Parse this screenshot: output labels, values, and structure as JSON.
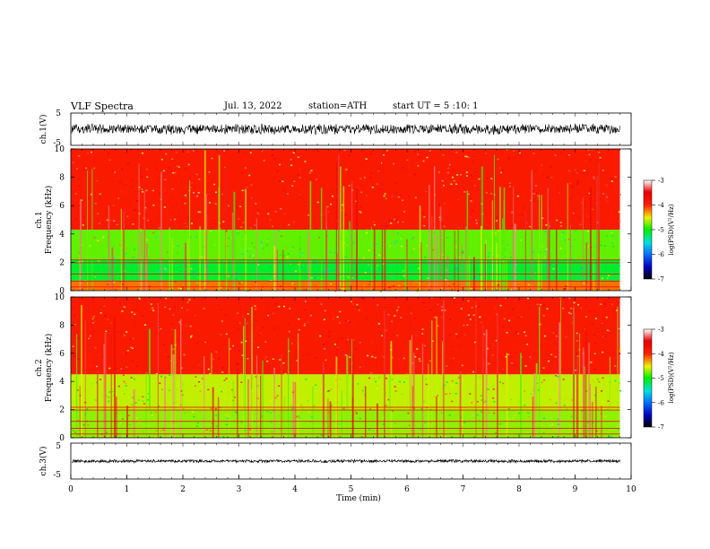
{
  "header": {
    "title": "VLF Spectra",
    "date": "Jul. 13, 2022",
    "station": "station=ATH",
    "start": "start UT =  5 :10: 1"
  },
  "chart_data": [
    {
      "type": "line",
      "name": "ch1-waveform",
      "ylabel": "ch.1(V)",
      "ylim": [
        -5,
        5
      ],
      "yticks": [
        "5",
        "-5"
      ],
      "xlim": [
        0,
        10
      ],
      "x_end": 9.8,
      "approx_amplitude": 1.5
    },
    {
      "type": "heatmap",
      "name": "ch1-spectrogram",
      "ylabel": "ch.1\nFrequency (kHz)",
      "ylim": [
        0,
        10
      ],
      "yticks": [
        "0",
        "2",
        "4",
        "6",
        "8",
        "10"
      ],
      "xlim": [
        0,
        10
      ],
      "x_end": 9.8,
      "bands": [
        {
          "from": 4.3,
          "to": 10,
          "level": -3.9
        },
        {
          "from": 2.2,
          "to": 4.3,
          "level": -4.8
        },
        {
          "from": 0.7,
          "to": 2.2,
          "level": -5.1
        },
        {
          "from": 0,
          "to": 0.7,
          "level": -4.2
        }
      ],
      "colorbar": {
        "label": "log(PSD)(V²/Hz)",
        "range": [
          -7,
          -3
        ],
        "ticks": [
          "-3",
          "-4",
          "-5",
          "-6",
          "-7"
        ]
      }
    },
    {
      "type": "heatmap",
      "name": "ch2-spectrogram",
      "ylabel": "ch.2\nFrequency (kHz)",
      "ylim": [
        0,
        10
      ],
      "yticks": [
        "0",
        "2",
        "4",
        "6",
        "8",
        "10"
      ],
      "xlim": [
        0,
        10
      ],
      "x_end": 9.8,
      "bands": [
        {
          "from": 4.5,
          "to": 10,
          "level": -3.9
        },
        {
          "from": 2.0,
          "to": 4.5,
          "level": -4.6
        },
        {
          "from": 0,
          "to": 2.0,
          "level": -4.7
        }
      ],
      "colorbar": {
        "label": "log(PSD)(V²/Hz)",
        "range": [
          -7,
          -3
        ],
        "ticks": [
          "-3",
          "-4",
          "-5",
          "-6",
          "-7"
        ]
      }
    },
    {
      "type": "line",
      "name": "ch3-waveform",
      "ylabel": "ch.3(V)",
      "ylim": [
        -5,
        5
      ],
      "yticks": [
        "5",
        "-5"
      ],
      "xlim": [
        0,
        10
      ],
      "x_end": 9.8,
      "approx_amplitude": 0.4,
      "xlabel": "Time (min)",
      "xticks": [
        "0",
        "1",
        "2",
        "3",
        "4",
        "5",
        "6",
        "7",
        "8",
        "9",
        "10"
      ]
    }
  ]
}
